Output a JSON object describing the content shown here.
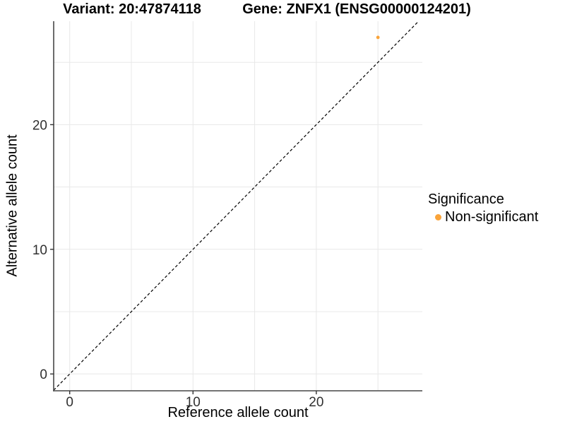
{
  "titles": {
    "variant": "Variant: 20:47874118",
    "gene": "Gene: ZNFX1 (ENSG00000124201)"
  },
  "chart_data": {
    "type": "scatter",
    "title": "Variant: 20:47874118 | Gene: ZNFX1 (ENSG00000124201)",
    "xlabel": "Reference allele count",
    "ylabel": "Alternative allele count",
    "points": [
      {
        "x": 25,
        "y": 27,
        "series": "Non-significant"
      }
    ],
    "identity_line": {
      "slope": 1,
      "intercept": 0,
      "style": "dashed"
    },
    "xlim": [
      -1.3,
      28.6
    ],
    "ylim": [
      -1.35,
      28.3
    ],
    "xticks": [
      "0",
      "10",
      "20"
    ],
    "yticks": [
      "0",
      "10",
      "20"
    ],
    "xtick_values": [
      0,
      10,
      20
    ],
    "ytick_values": [
      0,
      10,
      20
    ],
    "grid_interval": 5,
    "grid": "on",
    "legend": {
      "title": "Significance",
      "position": "right",
      "entries": [
        {
          "label": "Non-significant",
          "color": "#FAA43A"
        }
      ]
    },
    "colors": {
      "point": "#FAA43A",
      "grid": "#E8E8E8",
      "axis": "#474747",
      "tick": "#333333",
      "tick_label": "#303030",
      "identity_line": "#000000"
    }
  }
}
